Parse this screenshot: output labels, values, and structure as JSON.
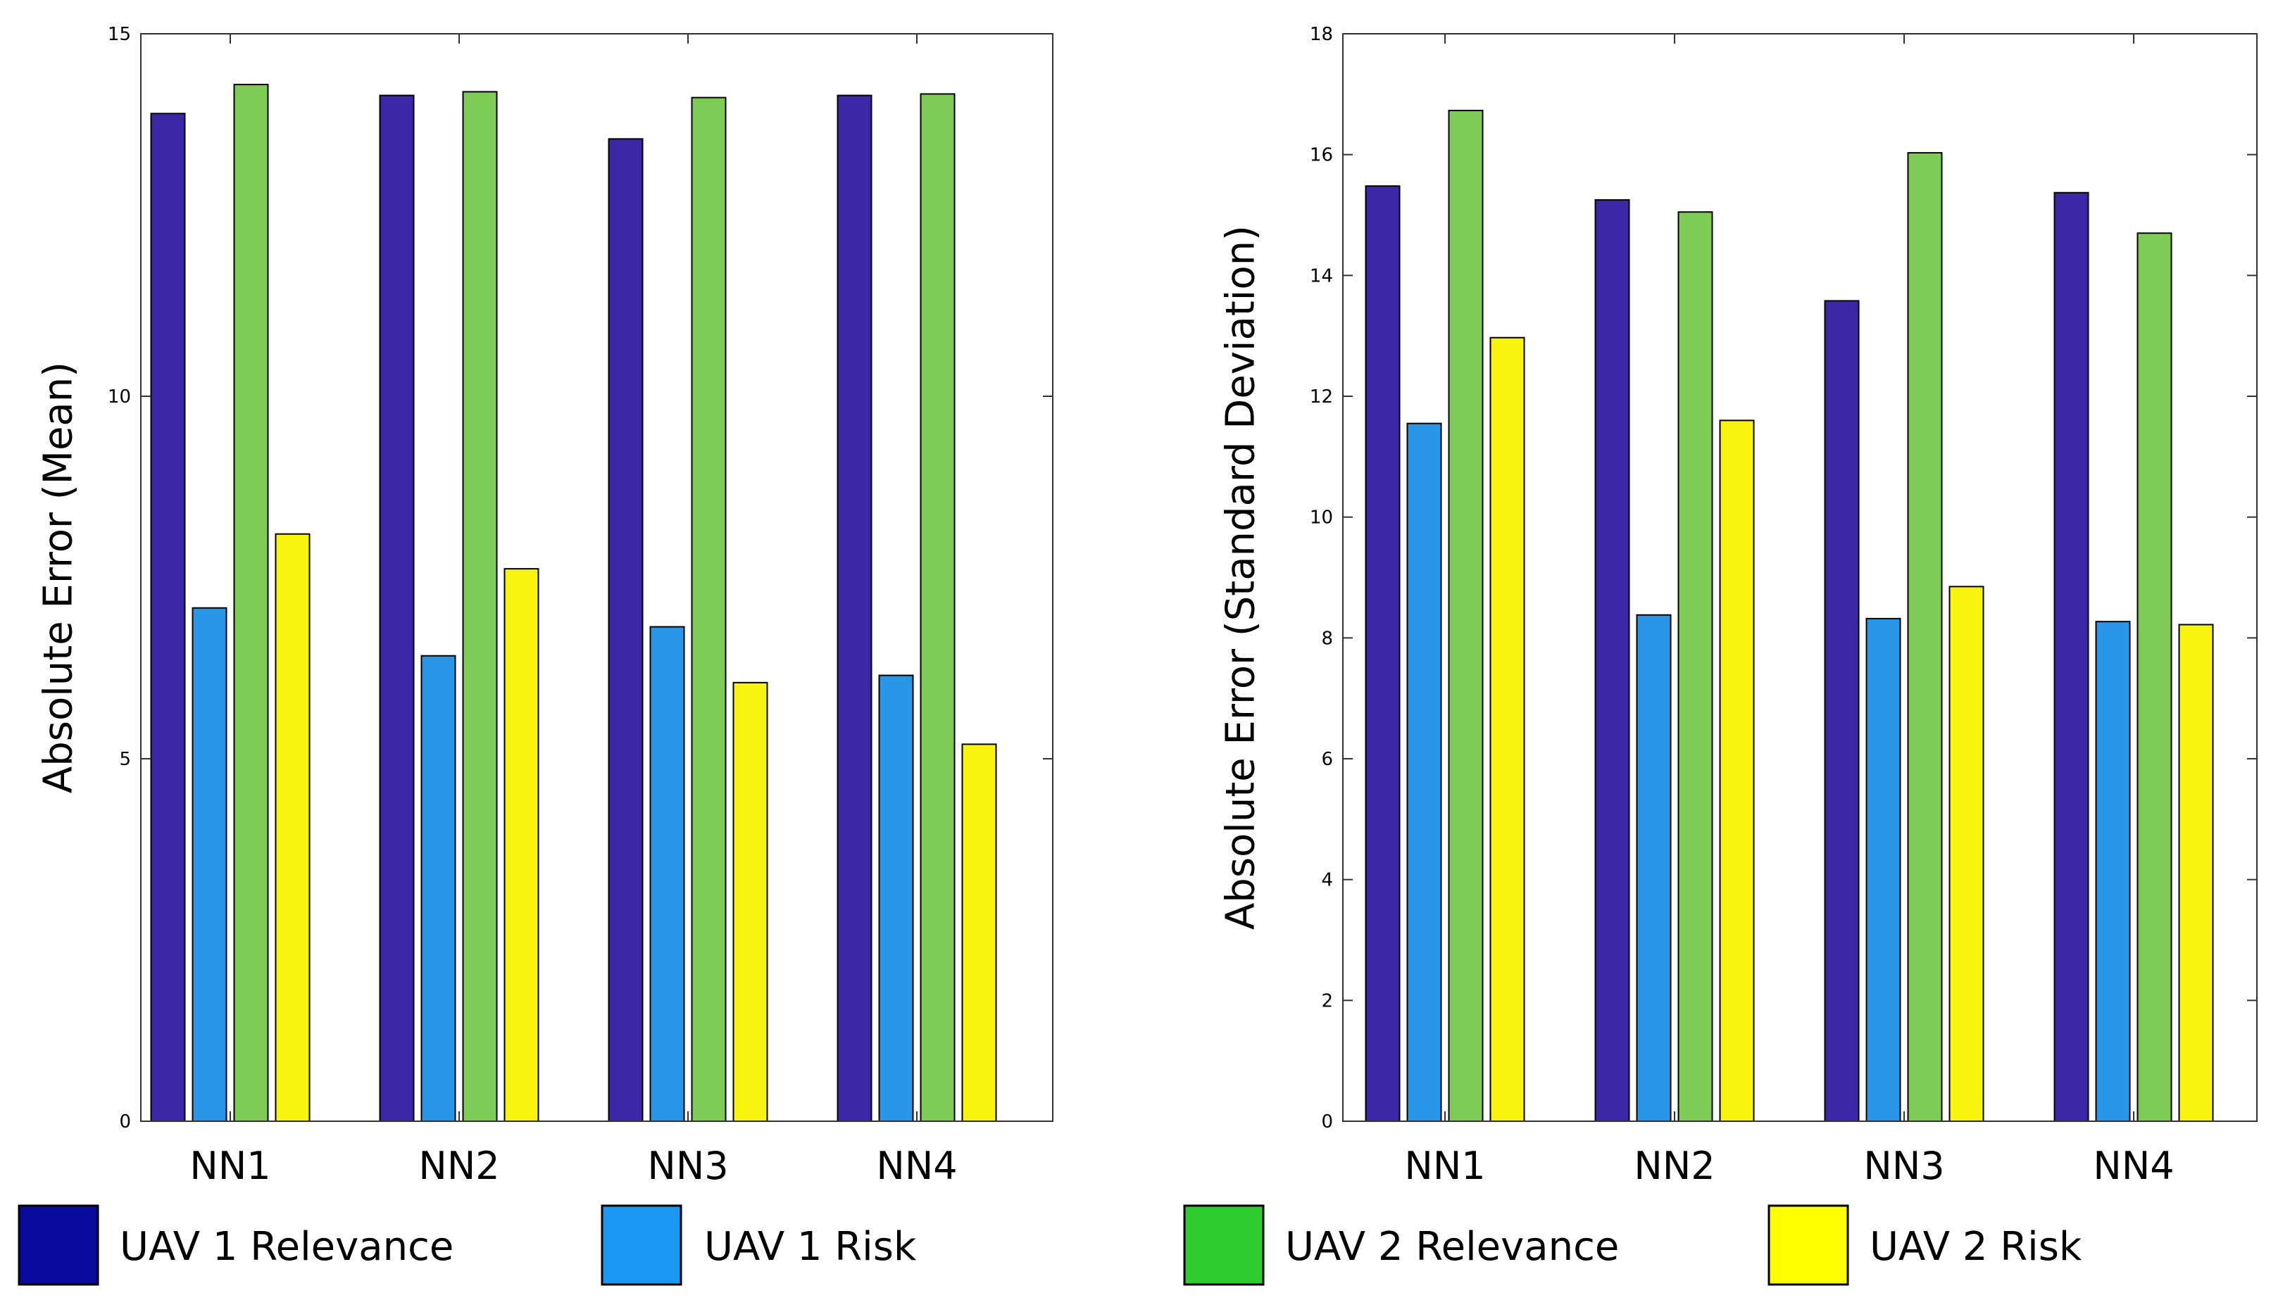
{
  "colors": {
    "uav1_relevance": "#3c28a6",
    "uav1_risk": "#2a96e8",
    "uav2_relevance": "#7ecb55",
    "uav2_risk": "#f8f40d",
    "legend_uav1_relevance": "#0a0a9c",
    "legend_uav1_risk": "#1a98f4",
    "legend_uav2_relevance": "#2ecc2e",
    "legend_uav2_risk": "#ffff00"
  },
  "legend": {
    "uav1_relevance": "UAV 1 Relevance",
    "uav1_risk": "UAV 1 Risk",
    "uav2_relevance": "UAV 2 Relevance",
    "uav2_risk": "UAV 2 Risk"
  },
  "chart_data": [
    {
      "type": "bar",
      "title": "",
      "xlabel": "",
      "ylabel": "Absolute Error (Mean)",
      "ylim": [
        0,
        15
      ],
      "yticks": [
        0,
        5,
        10,
        15
      ],
      "grid": false,
      "legend_position": "bottom",
      "categories": [
        "NN1",
        "NN2",
        "NN3",
        "NN4"
      ],
      "series": [
        {
          "name": "UAV 1 Relevance",
          "values": [
            13.9,
            14.15,
            13.55,
            14.15
          ]
        },
        {
          "name": "UAV 1 Risk",
          "values": [
            7.08,
            6.42,
            6.82,
            6.15
          ]
        },
        {
          "name": "UAV 2 Relevance",
          "values": [
            14.3,
            14.2,
            14.12,
            14.17
          ]
        },
        {
          "name": "UAV 2 Risk",
          "values": [
            8.1,
            7.62,
            6.05,
            5.2
          ]
        }
      ]
    },
    {
      "type": "bar",
      "title": "",
      "xlabel": "",
      "ylabel": "Absolute Error (Standard Deviation)",
      "ylim": [
        0,
        18
      ],
      "yticks": [
        0,
        2,
        4,
        6,
        8,
        10,
        12,
        14,
        16,
        18
      ],
      "grid": false,
      "legend_position": "bottom",
      "categories": [
        "NN1",
        "NN2",
        "NN3",
        "NN4"
      ],
      "series": [
        {
          "name": "UAV 1 Relevance",
          "values": [
            15.48,
            15.25,
            13.58,
            15.37
          ]
        },
        {
          "name": "UAV 1 Risk",
          "values": [
            11.55,
            8.38,
            8.32,
            8.27
          ]
        },
        {
          "name": "UAV 2 Relevance",
          "values": [
            16.73,
            15.05,
            16.03,
            14.7
          ]
        },
        {
          "name": "UAV 2 Risk",
          "values": [
            12.97,
            11.6,
            8.85,
            8.22
          ]
        }
      ]
    }
  ]
}
